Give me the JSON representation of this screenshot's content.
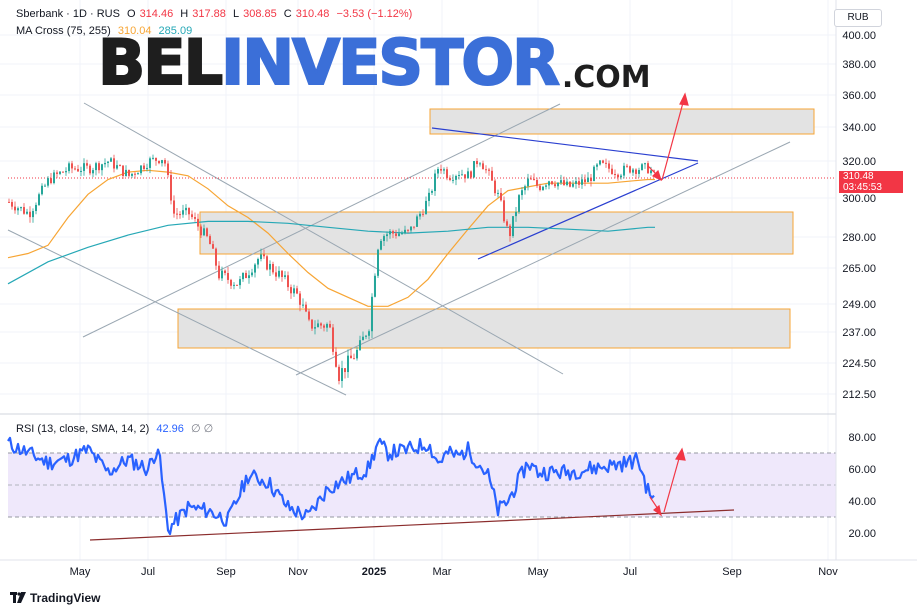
{
  "header": {
    "symbol": "Sberbank · 1D · RUS",
    "open_label": "O",
    "open": "314.46",
    "high_label": "H",
    "high": "317.88",
    "low_label": "L",
    "low": "308.85",
    "close_label": "C",
    "close": "310.48",
    "change": "−3.53 (−1.12%)",
    "ma_label": "MA Cross (75, 255)",
    "ma_fast": "310.04",
    "ma_slow": "285.09"
  },
  "currency": "RUB",
  "last_price": "310.48",
  "countdown": "03:45:53",
  "rsi_header": {
    "label": "RSI (13, close, SMA, 14, 2)",
    "value": "42.96",
    "icons": "∅ ∅"
  },
  "watermark": {
    "part1": "BEL",
    "part2": "INVESTOR",
    "part3": ".COM"
  },
  "footer": {
    "brand": "TradingView"
  },
  "colors": {
    "up": "#26a69a",
    "down": "#ef5350",
    "ma_fast": "#f7a534",
    "ma_slow": "#26a8b6",
    "rsi": "#2962ff",
    "zone_fill": "#e3e3e3",
    "zone_border": "#f7a534",
    "trend_blue": "#2a3fd0",
    "channel": "#9aa7b2",
    "arrow": "#f23645",
    "rsi_support": "#8b2d2d"
  },
  "chart_data": [
    {
      "type": "candlestick",
      "x_ticks": [
        "May",
        "Jul",
        "Sep",
        "Nov",
        "2025",
        "Mar",
        "May",
        "Jul",
        "Sep",
        "Nov"
      ],
      "y_ticks": [
        "400.00",
        "380.00",
        "360.00",
        "340.00",
        "320.00",
        "300.00",
        "280.00",
        "265.00",
        "249.00",
        "237.00",
        "224.50",
        "212.50"
      ],
      "ylim": [
        206,
        404
      ],
      "series": [
        {
          "name": "MA 75",
          "values": [
            [
              0,
              270
            ],
            [
              20,
              272
            ],
            [
              40,
              276
            ],
            [
              60,
              290
            ],
            [
              80,
              302
            ],
            [
              100,
              310
            ],
            [
              120,
              314
            ],
            [
              140,
              315
            ],
            [
              160,
              314
            ],
            [
              180,
              312
            ],
            [
              200,
              305
            ],
            [
              220,
              296
            ],
            [
              240,
              290
            ],
            [
              260,
              282
            ],
            [
              280,
              272
            ],
            [
              300,
              263
            ],
            [
              320,
              256
            ],
            [
              340,
              252
            ],
            [
              360,
              248
            ],
            [
              380,
              248
            ],
            [
              400,
              252
            ],
            [
              420,
              260
            ],
            [
              440,
              272
            ],
            [
              460,
              284
            ],
            [
              480,
              296
            ],
            [
              500,
              304
            ],
            [
              520,
              306
            ],
            [
              540,
              308
            ],
            [
              560,
              308
            ],
            [
              580,
              308
            ],
            [
              600,
              308
            ],
            [
              620,
              309
            ],
            [
              640,
              310
            ],
            [
              647,
              310
            ]
          ]
        },
        {
          "name": "MA 255",
          "values": [
            [
              0,
              258
            ],
            [
              40,
              268
            ],
            [
              80,
              275
            ],
            [
              120,
              281
            ],
            [
              160,
              286
            ],
            [
              200,
              288
            ],
            [
              240,
              288
            ],
            [
              280,
              287
            ],
            [
              320,
              285
            ],
            [
              360,
              283
            ],
            [
              400,
              282
            ],
            [
              440,
              283
            ],
            [
              480,
              285
            ],
            [
              520,
              285
            ],
            [
              560,
              284
            ],
            [
              600,
              283
            ],
            [
              640,
              285
            ],
            [
              647,
              285
            ]
          ]
        }
      ],
      "close_path": [
        [
          0,
          298
        ],
        [
          20,
          292
        ],
        [
          40,
          310
        ],
        [
          60,
          316
        ],
        [
          80,
          316
        ],
        [
          100,
          320
        ],
        [
          120,
          312
        ],
        [
          140,
          320
        ],
        [
          155,
          322
        ],
        [
          165,
          292
        ],
        [
          180,
          292
        ],
        [
          200,
          278
        ],
        [
          210,
          262
        ],
        [
          230,
          258
        ],
        [
          250,
          270
        ],
        [
          270,
          262
        ],
        [
          290,
          252
        ],
        [
          300,
          240
        ],
        [
          320,
          240
        ],
        [
          330,
          220
        ],
        [
          350,
          230
        ],
        [
          360,
          240
        ],
        [
          370,
          280
        ],
        [
          380,
          282
        ],
        [
          400,
          282
        ],
        [
          420,
          300
        ],
        [
          430,
          318
        ],
        [
          440,
          312
        ],
        [
          450,
          314
        ],
        [
          460,
          312
        ],
        [
          470,
          322
        ],
        [
          480,
          312
        ],
        [
          490,
          300
        ],
        [
          500,
          280
        ],
        [
          510,
          300
        ],
        [
          520,
          310
        ],
        [
          530,
          306
        ],
        [
          540,
          310
        ],
        [
          560,
          306
        ],
        [
          580,
          310
        ],
        [
          590,
          318
        ],
        [
          610,
          314
        ],
        [
          620,
          316
        ],
        [
          640,
          316
        ],
        [
          647,
          310.48
        ]
      ]
    },
    {
      "type": "line",
      "name": "RSI",
      "y_ticks": [
        "80.00",
        "60.00",
        "40.00",
        "20.00"
      ],
      "ylim": [
        12,
        87
      ],
      "values": [
        [
          0,
          76
        ],
        [
          20,
          70
        ],
        [
          40,
          64
        ],
        [
          60,
          66
        ],
        [
          80,
          72
        ],
        [
          100,
          58
        ],
        [
          120,
          66
        ],
        [
          140,
          60
        ],
        [
          150,
          74
        ],
        [
          160,
          22
        ],
        [
          180,
          36
        ],
        [
          200,
          34
        ],
        [
          220,
          28
        ],
        [
          240,
          56
        ],
        [
          260,
          52
        ],
        [
          280,
          36
        ],
        [
          300,
          30
        ],
        [
          320,
          48
        ],
        [
          340,
          54
        ],
        [
          360,
          60
        ],
        [
          370,
          76
        ],
        [
          380,
          70
        ],
        [
          400,
          72
        ],
        [
          420,
          76
        ],
        [
          430,
          64
        ],
        [
          440,
          70
        ],
        [
          450,
          68
        ],
        [
          460,
          72
        ],
        [
          470,
          64
        ],
        [
          480,
          56
        ],
        [
          490,
          34
        ],
        [
          500,
          40
        ],
        [
          510,
          52
        ],
        [
          520,
          64
        ],
        [
          530,
          58
        ],
        [
          540,
          58
        ],
        [
          560,
          58
        ],
        [
          580,
          60
        ],
        [
          600,
          62
        ],
        [
          620,
          64
        ],
        [
          630,
          66
        ],
        [
          640,
          46
        ],
        [
          647,
          42.96
        ]
      ]
    }
  ]
}
